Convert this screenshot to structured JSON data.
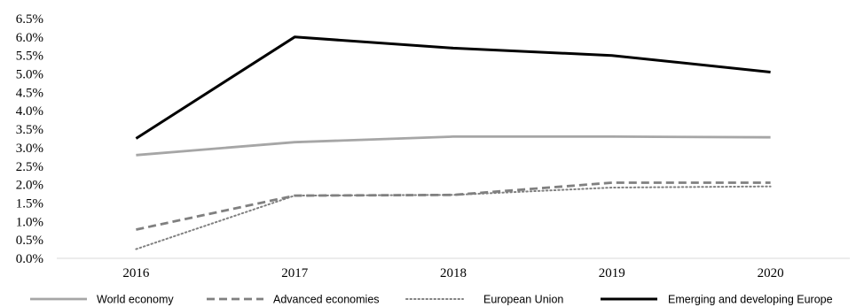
{
  "chart_data": {
    "type": "line",
    "categories": [
      "2016",
      "2017",
      "2018",
      "2019",
      "2020"
    ],
    "ylim": [
      0,
      6.5
    ],
    "ytick_values": [
      0,
      0.5,
      1,
      1.5,
      2,
      2.5,
      3,
      3.5,
      4,
      4.5,
      5,
      5.5,
      6,
      6.5
    ],
    "ytick_labels": [
      "0.0%",
      "0.5%",
      "1.0%",
      "1.5%",
      "2.0%",
      "2.5%",
      "3.0%",
      "3.5%",
      "4.0%",
      "4.5%",
      "5.0%",
      "5.5%",
      "6.0%",
      "6.5%"
    ],
    "grid": false,
    "legend_position": "bottom",
    "series": [
      {
        "name": "World economy",
        "values": [
          2.8,
          3.15,
          3.3,
          3.3,
          3.28
        ],
        "color": "#a6a6a6",
        "style": "solid"
      },
      {
        "name": "Advanced economies",
        "values": [
          0.78,
          1.7,
          1.72,
          2.05,
          2.05
        ],
        "color": "#808080",
        "style": "dashed"
      },
      {
        "name": "European Union",
        "values": [
          0.25,
          1.7,
          1.72,
          1.92,
          1.95
        ],
        "color": "#808080",
        "style": "dotted"
      },
      {
        "name": "Emerging and developing Europe",
        "values": [
          3.25,
          6.0,
          5.7,
          5.5,
          5.05
        ],
        "color": "#000000",
        "style": "solid"
      }
    ]
  }
}
